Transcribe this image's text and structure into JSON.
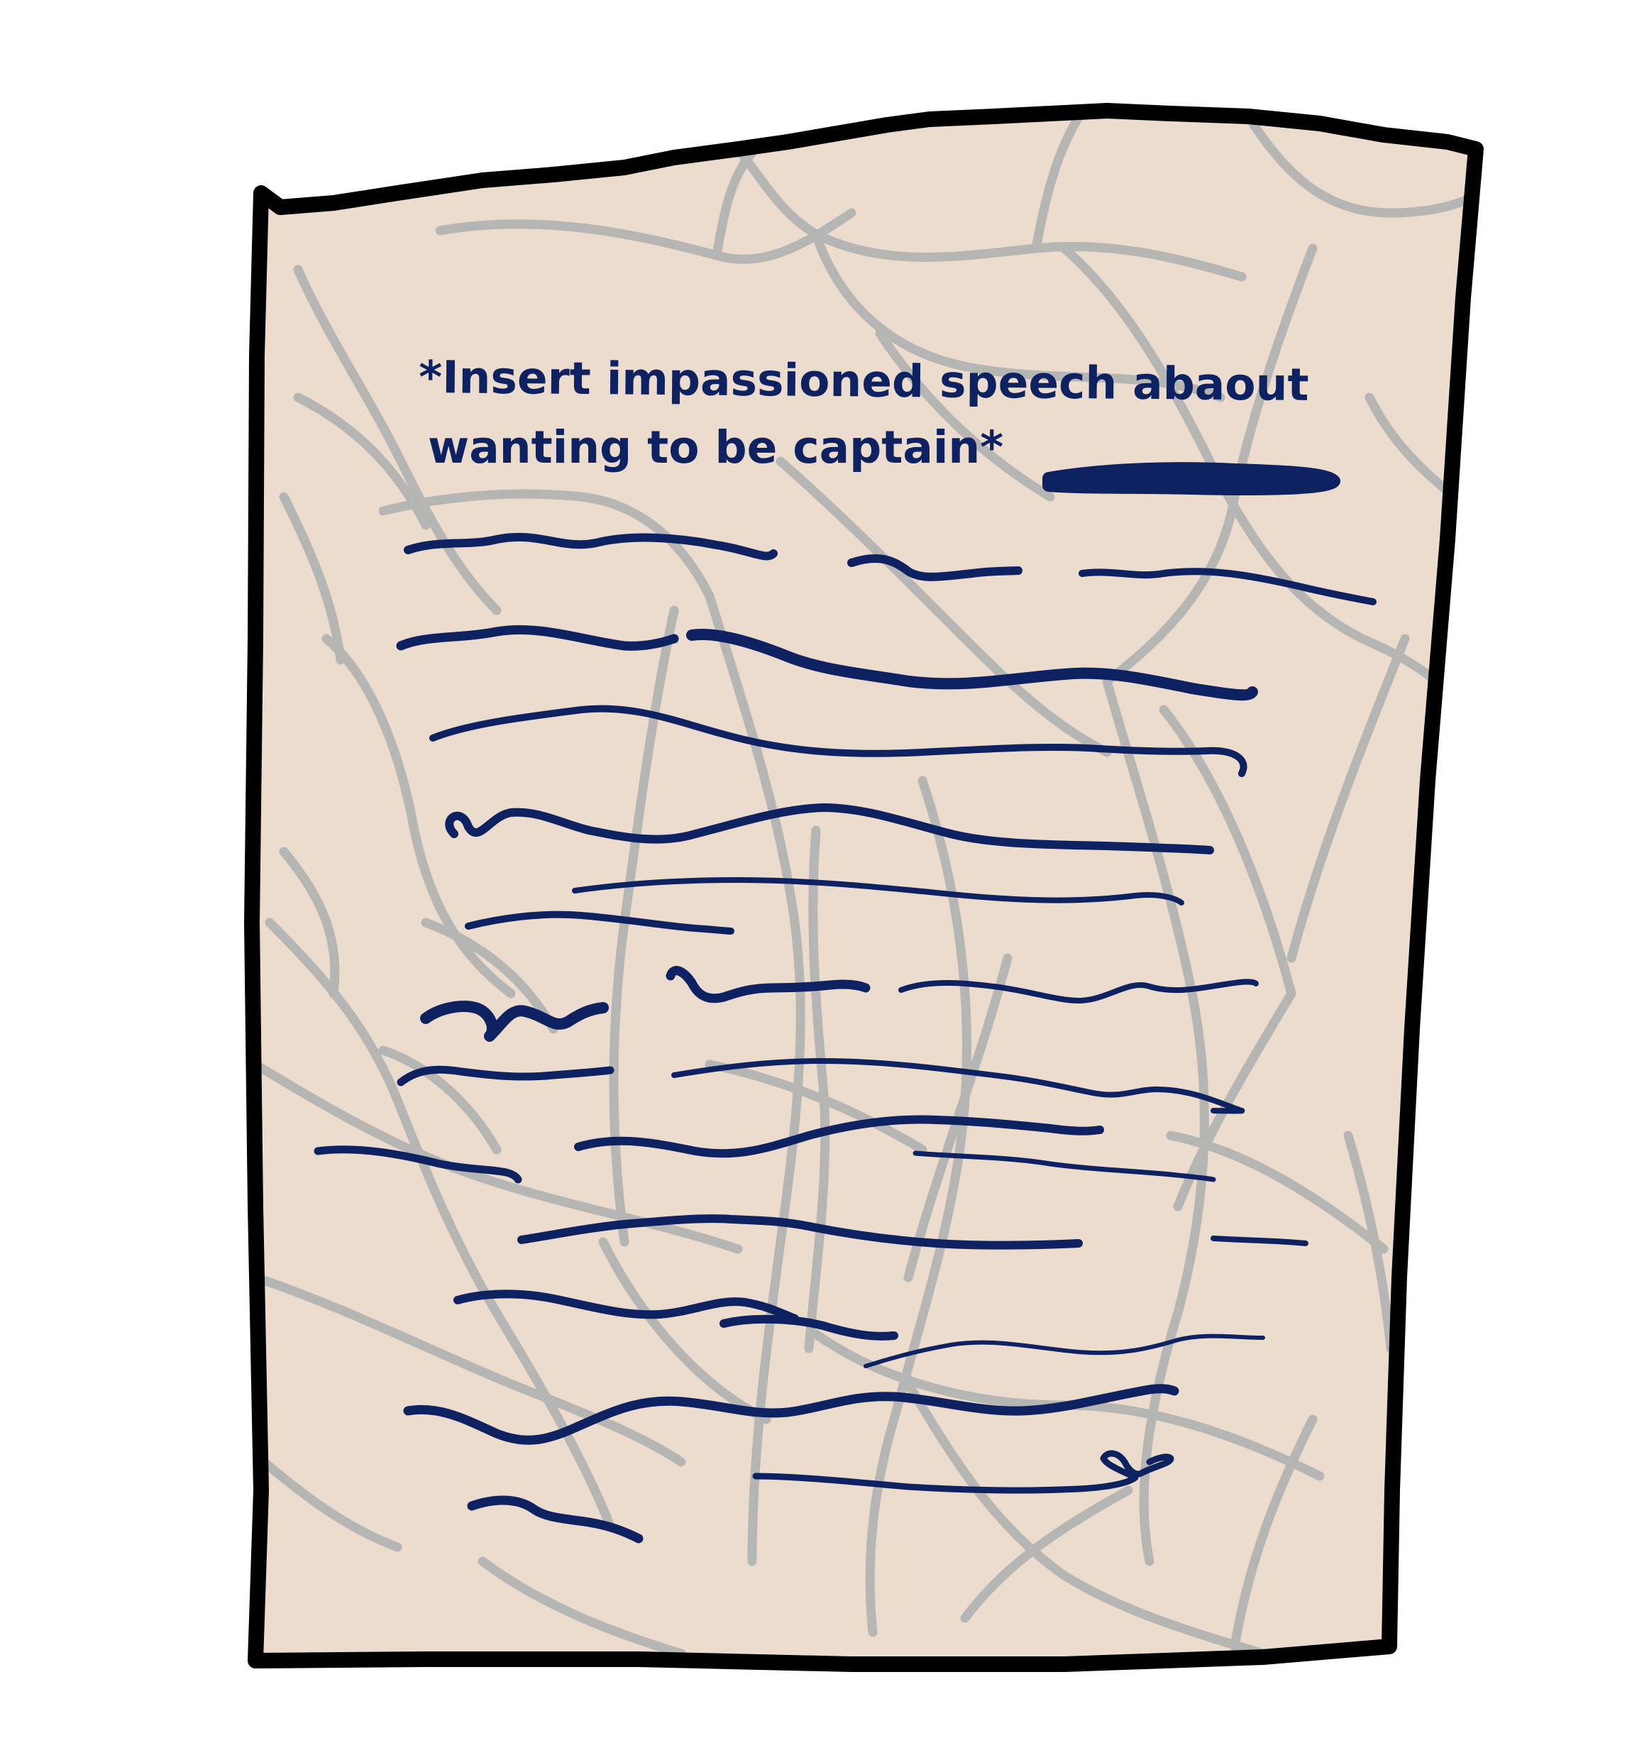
{
  "note": {
    "line1": "*Insert impassioned speech abaout",
    "line2": "wanting to be captain*"
  },
  "colors": {
    "paper": "#ecdcce",
    "border": "#000000",
    "creases": "#b3b3b3",
    "ink": "#0e2160"
  }
}
